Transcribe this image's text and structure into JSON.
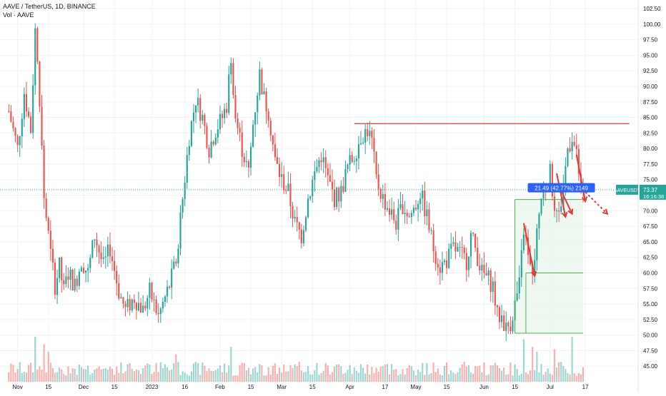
{
  "header": {
    "title": "AAVE / TetherUS, 1D, BINANCE",
    "volume_label": "Vol · AAVE"
  },
  "colors": {
    "up": "#26a69a",
    "down": "#ef5350",
    "grid": "#f0f3fa",
    "axis_text": "#131722",
    "resistance_line": "#e53935",
    "measure_line": "#4caf50",
    "measure_fill": "#e8f5e9",
    "measure_label_bg": "#2962ff",
    "current_price_bg": "#26a69a",
    "arrow": "#e53935"
  },
  "price_tag": {
    "symbol": "AAVEUSDT",
    "price": "73.37",
    "countdown": "16:16:38"
  },
  "measure_label": "21.49 (42.77%) 2149",
  "chart_data": {
    "type": "candlestick",
    "title": "AAVE / TetherUS, 1D, BINANCE",
    "ylim": [
      42.5,
      102.5
    ],
    "y_ticks": [
      45,
      47.5,
      50,
      52.5,
      55,
      57.5,
      60,
      62.5,
      65,
      67.5,
      70,
      72.5,
      75,
      77.5,
      80,
      82.5,
      85,
      87.5,
      90,
      92.5,
      95,
      97.5,
      100,
      102.5
    ],
    "y_tick_labels": [
      "45.00",
      "47.50",
      "50.00",
      "52.50",
      "55.00",
      "57.50",
      "60.00",
      "62.50",
      "65.00",
      "67.50",
      "70.00",
      "72.50",
      "75.00",
      "77.50",
      "80.00",
      "82.50",
      "85.00",
      "87.50",
      "90.00",
      "92.50",
      "95.00",
      "97.50",
      "100.00",
      "102.50"
    ],
    "x_ticks": [
      {
        "label": "Nov",
        "day": 4
      },
      {
        "label": "15",
        "day": 18
      },
      {
        "label": "Dec",
        "day": 34
      },
      {
        "label": "15",
        "day": 48
      },
      {
        "label": "2023",
        "day": 65
      },
      {
        "label": "16",
        "day": 80
      },
      {
        "label": "Feb",
        "day": 96
      },
      {
        "label": "15",
        "day": 110
      },
      {
        "label": "Mar",
        "day": 124
      },
      {
        "label": "15",
        "day": 138
      },
      {
        "label": "Apr",
        "day": 155
      },
      {
        "label": "17",
        "day": 171
      },
      {
        "label": "May",
        "day": 185
      },
      {
        "label": "15",
        "day": 199
      },
      {
        "label": "Jun",
        "day": 216
      },
      {
        "label": "15",
        "day": 230
      },
      {
        "label": "Jul",
        "day": 246
      },
      {
        "label": "17",
        "day": 262
      }
    ],
    "x_range_days": [
      -4,
      286
    ],
    "anchors": [
      [
        0,
        86
      ],
      [
        4,
        80
      ],
      [
        7,
        89
      ],
      [
        10,
        83
      ],
      [
        12,
        99
      ],
      [
        14,
        88
      ],
      [
        16,
        72
      ],
      [
        19,
        63
      ],
      [
        21,
        58
      ],
      [
        23,
        61
      ],
      [
        25,
        57
      ],
      [
        27,
        60
      ],
      [
        30,
        58
      ],
      [
        33,
        62
      ],
      [
        36,
        60
      ],
      [
        39,
        66
      ],
      [
        43,
        61
      ],
      [
        46,
        64
      ],
      [
        50,
        57
      ],
      [
        53,
        54
      ],
      [
        57,
        56
      ],
      [
        61,
        54
      ],
      [
        64,
        57
      ],
      [
        68,
        53
      ],
      [
        70,
        55
      ],
      [
        73,
        58
      ],
      [
        76,
        62
      ],
      [
        79,
        72
      ],
      [
        82,
        82
      ],
      [
        85,
        88
      ],
      [
        88,
        85
      ],
      [
        91,
        80
      ],
      [
        94,
        83
      ],
      [
        97,
        85
      ],
      [
        99,
        87
      ],
      [
        101,
        95
      ],
      [
        103,
        85
      ],
      [
        106,
        80
      ],
      [
        109,
        76
      ],
      [
        111,
        84
      ],
      [
        114,
        92
      ],
      [
        116,
        88
      ],
      [
        118,
        86
      ],
      [
        121,
        78
      ],
      [
        124,
        75
      ],
      [
        127,
        73
      ],
      [
        130,
        68
      ],
      [
        133,
        66
      ],
      [
        136,
        72
      ],
      [
        139,
        76
      ],
      [
        142,
        79
      ],
      [
        145,
        75
      ],
      [
        148,
        72
      ],
      [
        151,
        73
      ],
      [
        154,
        77
      ],
      [
        157,
        79
      ],
      [
        160,
        82
      ],
      [
        163,
        83
      ],
      [
        165,
        81
      ],
      [
        167,
        75
      ],
      [
        170,
        72
      ],
      [
        173,
        70
      ],
      [
        176,
        68
      ],
      [
        179,
        71
      ],
      [
        182,
        69
      ],
      [
        185,
        71
      ],
      [
        187,
        73
      ],
      [
        190,
        69
      ],
      [
        193,
        64
      ],
      [
        196,
        61
      ],
      [
        199,
        62
      ],
      [
        202,
        64
      ],
      [
        205,
        63
      ],
      [
        208,
        62
      ],
      [
        210,
        66
      ],
      [
        212,
        64
      ],
      [
        215,
        60
      ],
      [
        218,
        59
      ],
      [
        220,
        58
      ],
      [
        222,
        53
      ],
      [
        224,
        53
      ],
      [
        226,
        51
      ],
      [
        228,
        52
      ],
      [
        230,
        55
      ],
      [
        232,
        58
      ],
      [
        234,
        67
      ],
      [
        236,
        62
      ],
      [
        238,
        59
      ],
      [
        240,
        67
      ],
      [
        242,
        72
      ],
      [
        244,
        74
      ],
      [
        246,
        76
      ],
      [
        248,
        71
      ],
      [
        250,
        69
      ],
      [
        252,
        74
      ],
      [
        254,
        80
      ],
      [
        256,
        82
      ],
      [
        258,
        79
      ],
      [
        260,
        73
      ],
      [
        261,
        73.37
      ]
    ],
    "volume": {
      "max_value": 100,
      "spikes": [
        [
          12,
          90
        ],
        [
          16,
          75
        ],
        [
          18,
          60
        ],
        [
          76,
          55
        ],
        [
          101,
          70
        ],
        [
          234,
          85
        ],
        [
          238,
          70
        ],
        [
          240,
          60
        ],
        [
          248,
          65
        ],
        [
          256,
          90
        ]
      ]
    },
    "drawings": {
      "resistance": {
        "price": 84,
        "from_day": 157,
        "to_day": 282
      },
      "measure_box": {
        "from_day": 230,
        "to_day": 261,
        "low": 50.3,
        "high": 71.8
      },
      "measure_inner_line": {
        "from_day": 235,
        "to_day": 261,
        "price": 60
      },
      "measure_inner_vertical": {
        "day": 235,
        "from": 50.3,
        "to": 60
      }
    }
  }
}
